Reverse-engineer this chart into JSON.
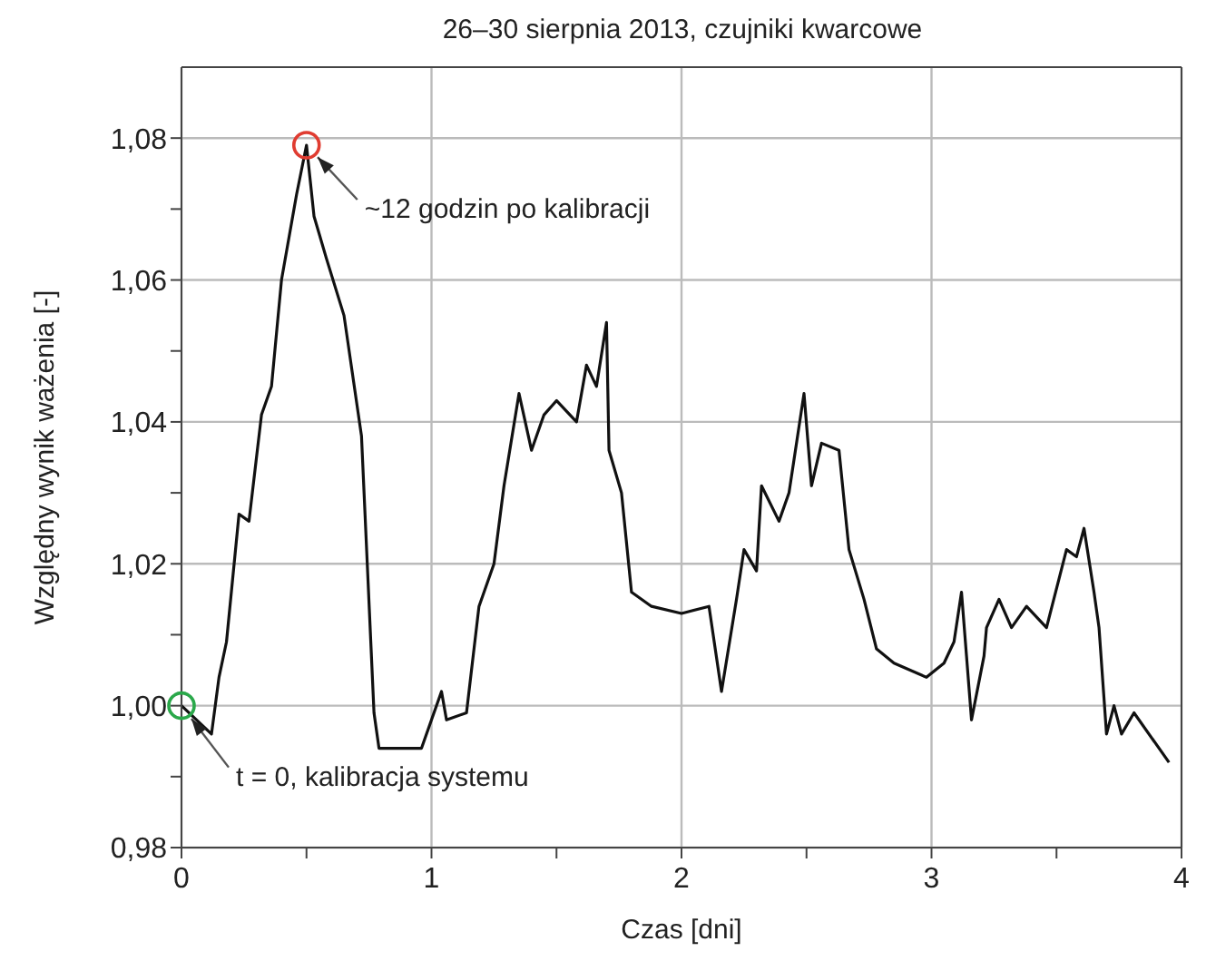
{
  "chart_data": {
    "type": "line",
    "title": "26–30 sierpnia 2013, czujniki kwarcowe",
    "xlabel": "Czas [dni]",
    "ylabel": "Względny wynik ważenia [-]",
    "xlim": [
      0,
      4
    ],
    "xticks": [
      0,
      {
        "value": 0.5,
        "label": null
      },
      1,
      {
        "value": 1.5,
        "label": null
      },
      2,
      {
        "value": 2.5,
        "label": null
      },
      3,
      {
        "value": 3.5,
        "label": null
      },
      4
    ],
    "ylim": [
      0.98,
      1.09
    ],
    "yticks": [
      {
        "value": 0.98,
        "label": "0,98"
      },
      {
        "value": 0.99,
        "label": null
      },
      {
        "value": 1.0,
        "label": "1,00"
      },
      {
        "value": 1.01,
        "label": null
      },
      {
        "value": 1.02,
        "label": "1,02"
      },
      {
        "value": 1.03,
        "label": null
      },
      {
        "value": 1.04,
        "label": "1,04"
      },
      {
        "value": 1.05,
        "label": null
      },
      {
        "value": 1.06,
        "label": "1,06"
      },
      {
        "value": 1.07,
        "label": null
      },
      {
        "value": 1.08,
        "label": "1,08"
      }
    ],
    "grid": true,
    "marker": "none",
    "line_style": "solid",
    "series": [
      {
        "color": "#111111",
        "x": [
          0,
          0.12,
          0.15,
          0.18,
          0.23,
          0.27,
          0.32,
          0.36,
          0.4,
          0.46,
          0.5,
          0.53,
          0.58,
          0.65,
          0.72,
          0.77,
          0.79,
          0.96,
          1.04,
          1.06,
          1.14,
          1.19,
          1.25,
          1.29,
          1.35,
          1.4,
          1.45,
          1.5,
          1.58,
          1.62,
          1.66,
          1.7,
          1.71,
          1.76,
          1.8,
          1.88,
          2.0,
          2.11,
          2.16,
          2.22,
          2.25,
          2.3,
          2.32,
          2.39,
          2.43,
          2.49,
          2.52,
          2.56,
          2.63,
          2.67,
          2.73,
          2.78,
          2.85,
          2.98,
          3.05,
          3.09,
          3.12,
          3.14,
          3.16,
          3.21,
          3.22,
          3.27,
          3.32,
          3.38,
          3.46,
          3.54,
          3.58,
          3.61,
          3.65,
          3.67,
          3.7,
          3.73,
          3.76,
          3.81,
          3.95
        ],
        "values": [
          1.0,
          0.996,
          1.004,
          1.009,
          1.027,
          1.026,
          1.041,
          1.045,
          1.06,
          1.072,
          1.079,
          1.069,
          1.063,
          1.055,
          1.038,
          0.999,
          0.994,
          0.994,
          1.002,
          0.998,
          0.999,
          1.014,
          1.02,
          1.031,
          1.044,
          1.036,
          1.041,
          1.043,
          1.04,
          1.048,
          1.045,
          1.054,
          1.036,
          1.03,
          1.016,
          1.014,
          1.013,
          1.014,
          1.002,
          1.015,
          1.022,
          1.019,
          1.031,
          1.026,
          1.03,
          1.044,
          1.031,
          1.037,
          1.036,
          1.022,
          1.015,
          1.008,
          1.006,
          1.004,
          1.006,
          1.009,
          1.016,
          1.007,
          0.998,
          1.007,
          1.011,
          1.015,
          1.011,
          1.014,
          1.011,
          1.022,
          1.021,
          1.025,
          1.016,
          1.011,
          0.996,
          1.0,
          0.996,
          0.999,
          0.992
        ]
      }
    ],
    "annotations": [
      {
        "text": "t = 0, kalibracja systemu",
        "x": 0,
        "y": 1.0
      },
      {
        "text": "~12 godzin po kalibracji",
        "x": 0.5,
        "y": 1.079
      }
    ]
  }
}
